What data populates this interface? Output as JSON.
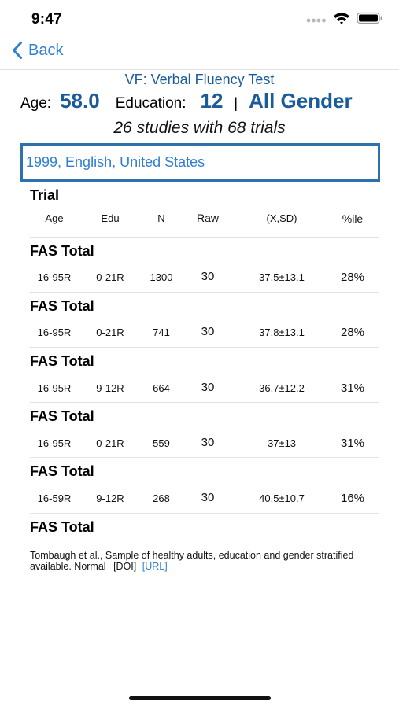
{
  "status_bar": {
    "time": "9:47",
    "icons": [
      "signal-icon",
      "wifi-icon",
      "battery-icon"
    ]
  },
  "nav": {
    "back_label": "Back"
  },
  "header": {
    "test_title": "VF: Verbal Fluency Test",
    "age_label": "Age:",
    "age_value": "58.0",
    "education_label": "Education:",
    "education_value": "12",
    "separator": "|",
    "gender_value": "All Gender",
    "studies_summary": "26 studies with 68 trials"
  },
  "selector": {
    "value": "1999, English, United States"
  },
  "table": {
    "heading": "Trial",
    "columns": {
      "age": "Age",
      "edu": "Edu",
      "n": "N",
      "raw": "Raw",
      "xsd": "(X,SD)",
      "pct": "%ile"
    },
    "trials": [
      {
        "name": "FAS Total",
        "age": "16-95R",
        "edu": "0-21R",
        "n": "1300",
        "raw": "30",
        "xsd": "37.5±13.1",
        "pct": "28%"
      },
      {
        "name": "FAS Total",
        "age": "16-95R",
        "edu": "0-21R",
        "n": "741",
        "raw": "30",
        "xsd": "37.8±13.1",
        "pct": "28%"
      },
      {
        "name": "FAS Total",
        "age": "16-95R",
        "edu": "9-12R",
        "n": "664",
        "raw": "30",
        "xsd": "36.7±12.2",
        "pct": "31%"
      },
      {
        "name": "FAS Total",
        "age": "16-95R",
        "edu": "0-21R",
        "n": "559",
        "raw": "30",
        "xsd": "37±13",
        "pct": "31%"
      },
      {
        "name": "FAS Total",
        "age": "16-59R",
        "edu": "9-12R",
        "n": "268",
        "raw": "30",
        "xsd": "40.5±10.7",
        "pct": "16%"
      }
    ],
    "last_trial_name": "FAS Total"
  },
  "citation": {
    "text": "Tombaugh et al., Sample of healthy adults, education and gender stratified available. Normal",
    "doi_label": "[DOI]",
    "url_label": "[URL]"
  },
  "colors": {
    "accent_blue": "#2f7fd4",
    "value_blue": "#1a5b9a",
    "selector_border": "#2e72ab"
  }
}
